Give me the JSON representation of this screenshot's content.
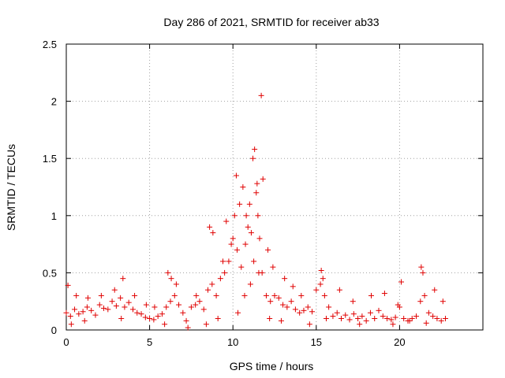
{
  "chart_data": {
    "type": "scatter",
    "title": "Day 286 of 2021, SRMTID for receiver ab33",
    "xlabel": "GPS time / hours",
    "ylabel": "SRMTID / TECUs",
    "xlim": [
      0,
      25
    ],
    "ylim": [
      0,
      2.5
    ],
    "xticks": [
      0,
      5,
      10,
      15,
      20
    ],
    "xtick_labels": [
      "0",
      "5",
      "10",
      "15",
      "20"
    ],
    "yticks": [
      0,
      0.5,
      1,
      1.5,
      2,
      2.5
    ],
    "ytick_labels": [
      "0",
      "0.5",
      "1",
      "1.5",
      "2",
      "2.5"
    ],
    "grid": true,
    "marker": "+",
    "series": [
      {
        "name": "SRMTID",
        "color": "#e00000",
        "x": [
          0.0,
          0.25,
          0.5,
          0.75,
          1.0,
          1.25,
          1.5,
          1.75,
          2.0,
          2.25,
          2.5,
          2.75,
          3.0,
          3.25,
          3.5,
          3.75,
          4.0,
          4.25,
          4.5,
          4.75,
          5.0,
          5.25,
          5.5,
          5.75,
          6.0,
          6.25,
          6.5,
          6.75,
          7.0,
          7.2,
          7.5,
          7.75,
          8.0,
          8.25,
          8.5,
          8.75,
          9.0,
          9.25,
          9.5,
          9.75,
          10.0,
          10.1,
          10.25,
          10.5,
          10.75,
          10.9,
          11.0,
          11.1,
          11.25,
          11.4,
          11.5,
          11.6,
          11.75,
          12.0,
          12.25,
          12.5,
          12.75,
          13.0,
          13.25,
          13.5,
          13.75,
          14.0,
          14.25,
          14.5,
          14.75,
          15.0,
          15.25,
          15.5,
          15.75,
          16.0,
          16.25,
          16.5,
          16.75,
          17.0,
          17.25,
          17.5,
          17.75,
          18.0,
          18.25,
          18.5,
          18.75,
          19.0,
          19.25,
          19.5,
          19.75,
          20.0,
          20.25,
          20.5,
          20.75,
          21.0,
          21.25,
          21.5,
          21.75,
          22.0,
          22.25,
          22.5,
          22.75,
          0.1,
          0.6,
          1.3,
          2.1,
          2.9,
          3.4,
          4.1,
          4.8,
          5.3,
          6.1,
          6.3,
          6.6,
          7.8,
          8.6,
          8.8,
          9.4,
          9.6,
          9.9,
          10.2,
          10.4,
          10.6,
          10.8,
          11.2,
          11.3,
          11.45,
          11.7,
          11.8,
          12.1,
          12.4,
          13.1,
          13.6,
          14.1,
          15.3,
          15.4,
          16.4,
          17.2,
          18.3,
          19.1,
          19.9,
          20.1,
          21.3,
          21.4,
          22.1,
          22.6,
          0.3,
          1.1,
          3.3,
          5.9,
          7.3,
          8.4,
          9.1,
          10.3,
          10.7,
          11.05,
          11.55,
          12.2,
          12.9,
          14.6,
          15.6,
          17.6,
          19.6,
          20.6,
          21.6
        ],
        "y": [
          0.15,
          0.12,
          0.18,
          0.14,
          0.16,
          0.2,
          0.17,
          0.13,
          0.22,
          0.19,
          0.18,
          0.25,
          0.21,
          0.28,
          0.2,
          0.24,
          0.18,
          0.15,
          0.14,
          0.11,
          0.1,
          0.09,
          0.12,
          0.14,
          0.2,
          0.25,
          0.3,
          0.22,
          0.15,
          0.08,
          0.2,
          0.22,
          0.25,
          0.18,
          0.35,
          0.4,
          0.3,
          0.45,
          0.5,
          0.6,
          0.8,
          1.0,
          0.7,
          0.55,
          0.75,
          0.9,
          1.1,
          0.85,
          0.6,
          1.2,
          1.0,
          0.8,
          0.5,
          0.3,
          0.25,
          0.3,
          0.28,
          0.22,
          0.2,
          0.25,
          0.18,
          0.15,
          0.17,
          0.2,
          0.16,
          0.35,
          0.4,
          0.3,
          0.2,
          0.12,
          0.15,
          0.1,
          0.13,
          0.09,
          0.14,
          0.1,
          0.12,
          0.08,
          0.15,
          0.1,
          0.17,
          0.12,
          0.1,
          0.09,
          0.11,
          0.2,
          0.1,
          0.08,
          0.1,
          0.12,
          0.25,
          0.3,
          0.15,
          0.12,
          0.1,
          0.08,
          0.1,
          0.39,
          0.3,
          0.28,
          0.3,
          0.35,
          0.45,
          0.3,
          0.22,
          0.2,
          0.5,
          0.45,
          0.4,
          0.3,
          0.9,
          0.85,
          0.6,
          0.95,
          0.75,
          1.35,
          1.1,
          1.25,
          1.0,
          1.5,
          1.58,
          1.28,
          2.05,
          1.32,
          0.7,
          0.55,
          0.45,
          0.38,
          0.3,
          0.52,
          0.45,
          0.35,
          0.25,
          0.3,
          0.32,
          0.22,
          0.42,
          0.55,
          0.5,
          0.35,
          0.25,
          0.05,
          0.08,
          0.1,
          0.05,
          0.02,
          0.05,
          0.1,
          0.15,
          0.3,
          0.4,
          0.5,
          0.1,
          0.08,
          0.05,
          0.1,
          0.05,
          0.05,
          0.08,
          0.06
        ]
      }
    ]
  }
}
